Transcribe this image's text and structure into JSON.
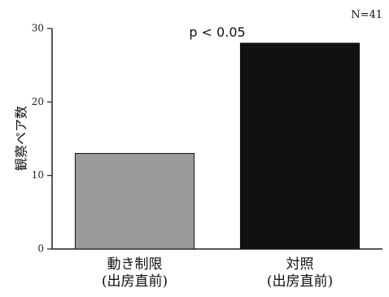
{
  "chart_data": {
    "type": "bar",
    "categories": [
      [
        "動き制限",
        "(出房直前)"
      ],
      [
        "対照",
        "(出房直前)"
      ]
    ],
    "values": [
      13,
      28
    ],
    "ylabel": "観察ペア数",
    "ylim": [
      0,
      30
    ],
    "yticks": [
      0,
      10,
      20,
      30
    ],
    "annotation": "p < 0.05",
    "sample_size": "N=41",
    "bar_colors": [
      "#9a9a9a",
      "#111111"
    ],
    "grid": false
  }
}
